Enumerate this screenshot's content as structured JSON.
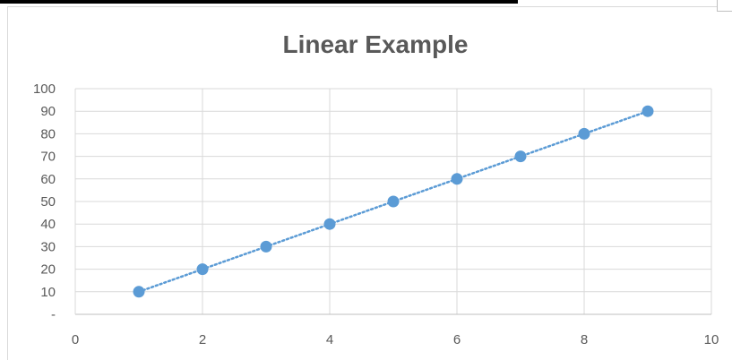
{
  "chart_data": {
    "type": "scatter",
    "title": "Linear Example",
    "xlabel": "",
    "ylabel": "",
    "xlim": [
      0,
      10
    ],
    "ylim": [
      0,
      100
    ],
    "x_ticks": [
      "0",
      "2",
      "4",
      "6",
      "8",
      "10"
    ],
    "y_ticks": [
      "-",
      "10",
      "20",
      "30",
      "40",
      "50",
      "60",
      "70",
      "80",
      "90",
      "100"
    ],
    "grid": true,
    "legend": "none",
    "trendline": "linear (dotted)",
    "series": [
      {
        "color": "#5b9bd5",
        "x": [
          1,
          2,
          3,
          4,
          5,
          6,
          7,
          8,
          9
        ],
        "y": [
          10,
          20,
          30,
          40,
          50,
          60,
          70,
          80,
          90
        ]
      }
    ]
  }
}
